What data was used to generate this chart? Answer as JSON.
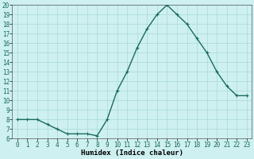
{
  "x": [
    0,
    1,
    2,
    3,
    4,
    5,
    6,
    7,
    8,
    9,
    10,
    11,
    12,
    13,
    14,
    15,
    16,
    17,
    18,
    19,
    20,
    21,
    22,
    23
  ],
  "y": [
    8,
    8,
    8,
    7.5,
    7,
    6.5,
    6.5,
    6.5,
    6.3,
    8,
    11,
    13,
    15.5,
    17.5,
    19,
    20,
    19,
    18,
    16.5,
    15,
    13,
    11.5,
    10.5,
    10.5
  ],
  "line_color": "#1a6b5a",
  "marker": "+",
  "marker_size": 3,
  "bg_color": "#cef0f0",
  "grid_color": "#aad8d8",
  "xlabel": "Humidex (Indice chaleur)",
  "xlim": [
    -0.5,
    23.5
  ],
  "ylim": [
    6,
    20
  ],
  "yticks": [
    6,
    7,
    8,
    9,
    10,
    11,
    12,
    13,
    14,
    15,
    16,
    17,
    18,
    19,
    20
  ],
  "xticks": [
    0,
    1,
    2,
    3,
    4,
    5,
    6,
    7,
    8,
    9,
    10,
    11,
    12,
    13,
    14,
    15,
    16,
    17,
    18,
    19,
    20,
    21,
    22,
    23
  ],
  "tick_fontsize": 5.5,
  "xlabel_fontsize": 6.5,
  "linewidth": 1.0,
  "marker_edge_width": 0.8
}
